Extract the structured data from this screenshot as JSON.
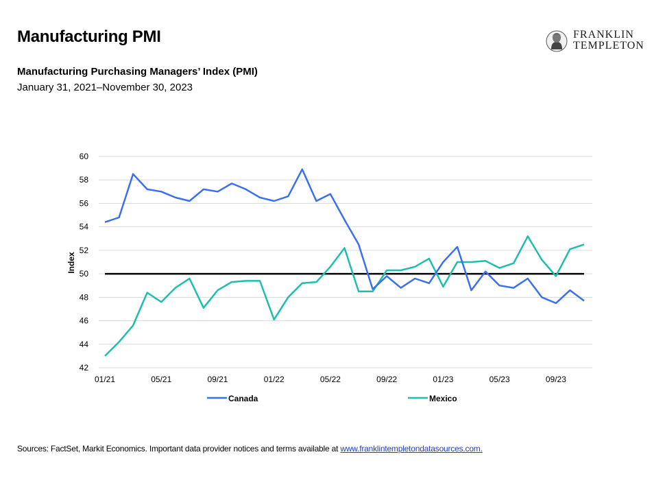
{
  "header": {
    "title": "Manufacturing PMI",
    "subtitle": "Manufacturing Purchasing Managers’ Index (PMI)",
    "date_range": "January 31, 2021–November 30, 2023"
  },
  "logo": {
    "line1": "FRANKLIN",
    "line2": "TEMPLETON"
  },
  "footer": {
    "text": "Sources: FactSet, Markit Economics. Important data provider notices and terms available at ",
    "link": "www.franklintempletondatasources.com."
  },
  "colors": {
    "canada": "#3a6ff0",
    "mexico": "#1dbfab",
    "reference": "#000000",
    "grid": "#d9d9d9"
  },
  "chart_data": {
    "type": "line",
    "ylabel": "Index",
    "xlabel": "",
    "ylim": [
      42,
      60
    ],
    "yticks": [
      42,
      44,
      46,
      48,
      50,
      52,
      54,
      56,
      58,
      60
    ],
    "grid": "horizontal",
    "legend": "bottom",
    "reference_line": 50,
    "x": [
      "01/21",
      "02/21",
      "03/21",
      "04/21",
      "05/21",
      "06/21",
      "07/21",
      "08/21",
      "09/21",
      "10/21",
      "11/21",
      "12/21",
      "01/22",
      "02/22",
      "03/22",
      "04/22",
      "05/22",
      "06/22",
      "07/22",
      "08/22",
      "09/22",
      "10/22",
      "11/22",
      "12/22",
      "01/23",
      "02/23",
      "03/23",
      "04/23",
      "05/23",
      "06/23",
      "07/23",
      "08/23",
      "09/23",
      "10/23",
      "11/23"
    ],
    "x_tick_labels": [
      "01/21",
      "05/21",
      "09/21",
      "01/22",
      "05/22",
      "09/22",
      "01/23",
      "05/23",
      "09/23"
    ],
    "series": [
      {
        "name": "Canada",
        "color": "#3a6ff0",
        "values": [
          54.4,
          54.8,
          58.5,
          57.2,
          57.0,
          56.5,
          56.2,
          57.2,
          57.0,
          57.7,
          57.2,
          56.5,
          56.2,
          56.6,
          58.9,
          56.2,
          56.8,
          54.6,
          52.5,
          48.7,
          49.8,
          48.8,
          49.6,
          49.2,
          51.0,
          52.3,
          48.6,
          50.2,
          49.0,
          48.8,
          49.6,
          48.0,
          47.5,
          48.6,
          47.7
        ]
      },
      {
        "name": "Mexico",
        "color": "#1dbfab",
        "values": [
          43.0,
          44.2,
          45.6,
          48.4,
          47.6,
          48.8,
          49.6,
          47.1,
          48.6,
          49.3,
          49.4,
          49.4,
          46.1,
          48.0,
          49.2,
          49.3,
          50.6,
          52.2,
          48.5,
          48.5,
          50.3,
          50.3,
          50.6,
          51.3,
          48.9,
          51.0,
          51.0,
          51.1,
          50.5,
          50.9,
          53.2,
          51.2,
          49.8,
          52.1,
          52.5
        ]
      }
    ]
  }
}
